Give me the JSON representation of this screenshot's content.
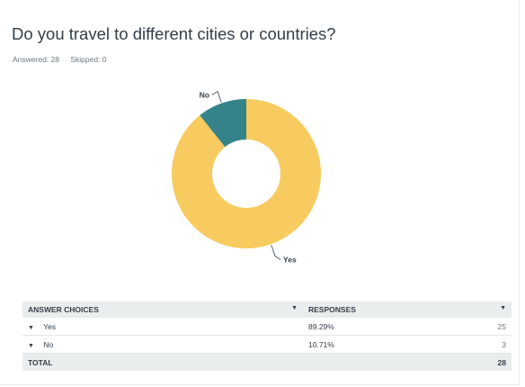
{
  "question": {
    "title": "Do you travel to different cities or countries?",
    "answered_label": "Answered: 28",
    "skipped_label": "Skipped: 0"
  },
  "colors": {
    "yes": "#f7cb5f",
    "no": "#35838a"
  },
  "chart_data": {
    "type": "pie",
    "style": "donut",
    "categories": [
      "Yes",
      "No"
    ],
    "values": [
      89.29,
      10.71
    ],
    "counts": [
      25,
      3
    ],
    "title": "Do you travel to different cities or countries?"
  },
  "table": {
    "headers": {
      "choices": "ANSWER CHOICES",
      "responses": "RESPONSES"
    },
    "rows": [
      {
        "label": "Yes",
        "percent": "89.29%",
        "count": "25"
      },
      {
        "label": "No",
        "percent": "10.71%",
        "count": "3"
      }
    ],
    "total": {
      "label": "TOTAL",
      "count": "28"
    }
  }
}
